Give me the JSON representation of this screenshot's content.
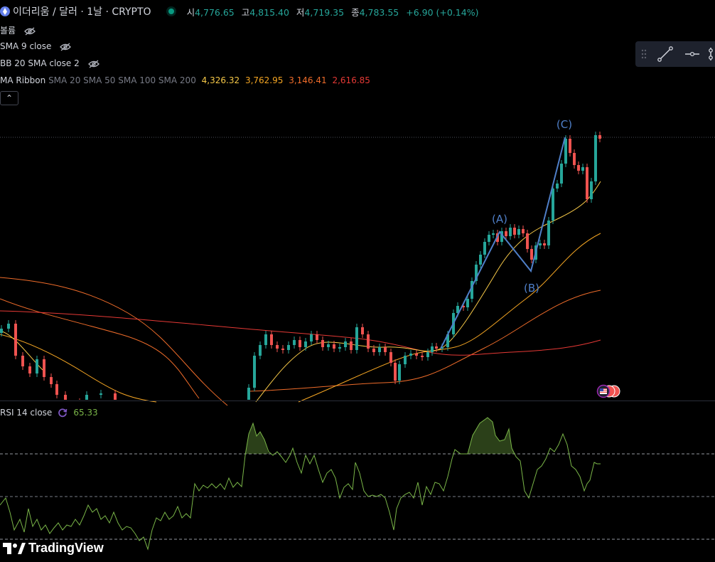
{
  "header": {
    "title": "이더리움 / 달러 · 1날 · CRYPTO",
    "open_label": "시",
    "open": "4,776.65",
    "high_label": "고",
    "high": "4,815.40",
    "low_label": "저",
    "low": "4,719.35",
    "close_label": "종",
    "close": "4,783.55",
    "change": "+6.90 (+0.14%)"
  },
  "indicators": {
    "volume": "볼륨",
    "sma": "SMA 9 close",
    "bb": "BB 20 SMA close 2",
    "ribbon_name": "MA Ribbon",
    "ribbon_params": "SMA 20 SMA 50 SMA 100 SMA 200",
    "ribbon_values": [
      "4,326.32",
      "3,762.95",
      "3,146.41",
      "2,616.85"
    ]
  },
  "wave_labels": [
    "(A)",
    "(B)",
    "(C)"
  ],
  "rsi": {
    "label": "RSI 14 close",
    "value": "65.33"
  },
  "brand": "TradingView",
  "colors": {
    "up": "#26a69a",
    "down": "#ef5350",
    "wave": "#4f7fc8",
    "ma20": "#f7c948",
    "ma50": "#f5a623",
    "ma100": "#ef6c2a",
    "ma200": "#e53935",
    "rsi": "#7ab648"
  }
}
